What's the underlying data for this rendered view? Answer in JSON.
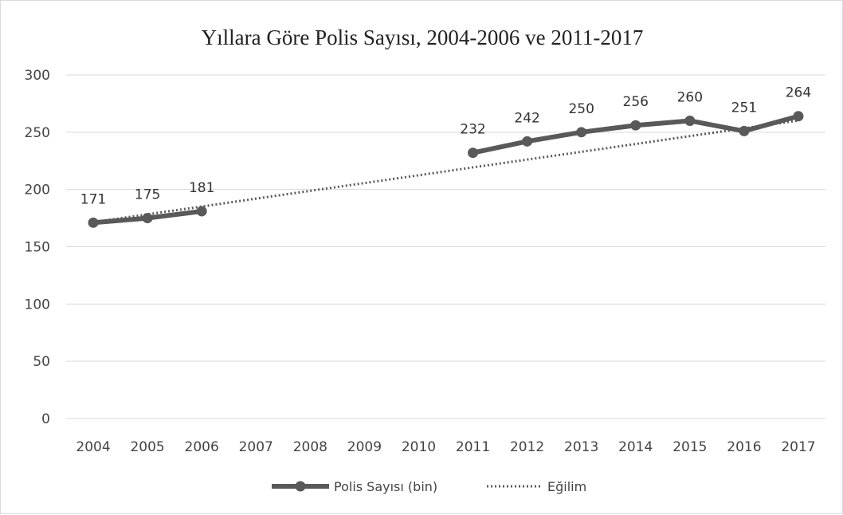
{
  "chart_data": {
    "type": "line",
    "title": "Yıllara Göre Polis Sayısı, 2004-2006 ve 2011-2017",
    "categories": [
      "2004",
      "2005",
      "2006",
      "2007",
      "2008",
      "2009",
      "2010",
      "2011",
      "2012",
      "2013",
      "2014",
      "2015",
      "2016",
      "2017"
    ],
    "series": [
      {
        "name": "Polis Sayısı (bin)",
        "color": "#595959",
        "values": [
          171,
          175,
          181,
          null,
          null,
          null,
          null,
          232,
          242,
          250,
          256,
          260,
          251,
          264
        ]
      },
      {
        "name": "Eğilim",
        "color": "#595959",
        "style": "dotted",
        "values": [
          171.5,
          178.3,
          185.1,
          192.0,
          198.8,
          205.6,
          212.4,
          219.3,
          226.1,
          232.9,
          239.7,
          246.6,
          253.4,
          260.2
        ]
      }
    ],
    "ylim": [
      0,
      300
    ],
    "yticks": [
      "0",
      "50",
      "100",
      "150",
      "200",
      "250",
      "300"
    ],
    "grid": true,
    "legend": "bottom"
  }
}
